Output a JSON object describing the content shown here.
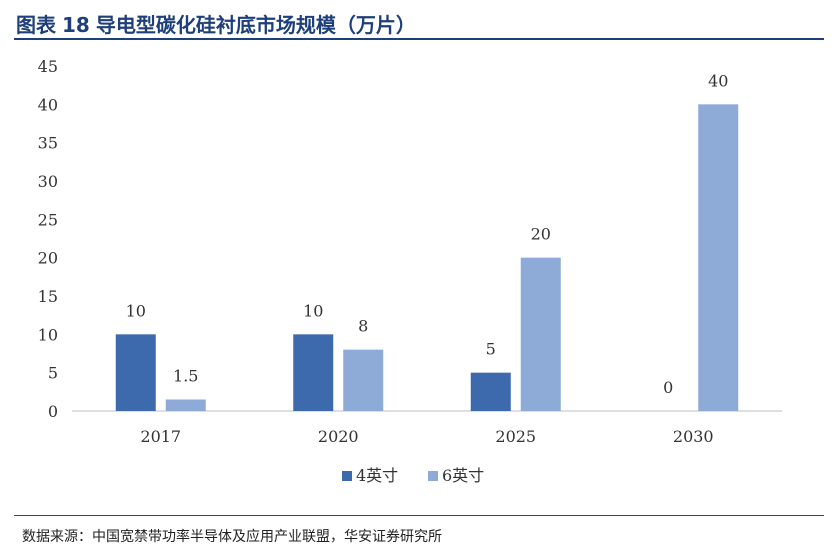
{
  "header": {
    "label": "图表",
    "number": "18",
    "text": "导电型碳化硅衬底市场规模（万片）"
  },
  "source": "数据来源：中国宽禁带功率半导体及应用产业联盟，华安证券研究所",
  "chart_data": {
    "type": "bar",
    "categories": [
      "2017",
      "2020",
      "2025",
      "2030"
    ],
    "series": [
      {
        "name": "4英寸",
        "values": [
          10,
          10,
          5,
          0
        ],
        "labels": [
          "10",
          "10",
          "5",
          "0"
        ],
        "color": "#3d6aad"
      },
      {
        "name": "6英寸",
        "values": [
          1.5,
          8,
          20,
          40
        ],
        "labels": [
          "1.5",
          "8",
          "20",
          "40"
        ],
        "color": "#8eaad6"
      }
    ],
    "ylim": [
      0,
      45
    ],
    "yticks": [
      "0",
      "5",
      "10",
      "15",
      "20",
      "25",
      "30",
      "35",
      "40",
      "45"
    ],
    "grid": false,
    "legend_position": "bottom"
  }
}
